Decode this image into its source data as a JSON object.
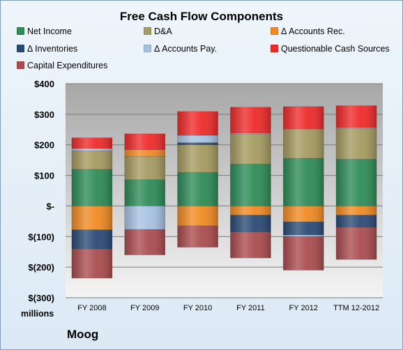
{
  "chart_data": {
    "type": "bar",
    "stacked": true,
    "title": "Free Cash Flow Components",
    "categories": [
      "FY 2008",
      "FY 2009",
      "FY 2010",
      "FY 2011",
      "FY 2012",
      "TTM 12-2012"
    ],
    "ylim": [
      -300,
      400
    ],
    "yticks": [
      400,
      300,
      200,
      100,
      0,
      -100,
      -200,
      -300
    ],
    "ytick_labels": [
      "$400",
      "$300",
      "$200",
      "$100",
      "$-",
      "$(100)",
      "$(200)",
      "$(300)"
    ],
    "units_label": "millions",
    "grid": true,
    "legend_position": "top",
    "series": [
      {
        "name": "Net Income",
        "color": "#2e8b57",
        "values": [
          120,
          86,
          110,
          137,
          156,
          153
        ]
      },
      {
        "name": "D&A",
        "color": "#a59a61",
        "values": [
          60,
          76,
          90,
          98,
          96,
          100
        ]
      },
      {
        "name": "Δ Accounts Rec.",
        "color": "#f08a22",
        "values": [
          -78,
          22,
          -65,
          -30,
          -52,
          -30
        ]
      },
      {
        "name": "Δ Inventories",
        "color": "#2a4a75",
        "values": [
          -63,
          0,
          7,
          -55,
          -43,
          -40
        ]
      },
      {
        "name": "Δ Accounts Pay.",
        "color": "#a6c2e2",
        "values": [
          8,
          -77,
          24,
          3,
          -5,
          3
        ]
      },
      {
        "name": "Questionable Cash Sources",
        "color": "#ee2a2a",
        "values": [
          35,
          52,
          78,
          85,
          73,
          72
        ]
      },
      {
        "name": "Capital Expenditures",
        "color": "#aa4c4e",
        "values": [
          -95,
          -83,
          -70,
          -85,
          -110,
          -105
        ]
      }
    ]
  },
  "company": "Moog"
}
